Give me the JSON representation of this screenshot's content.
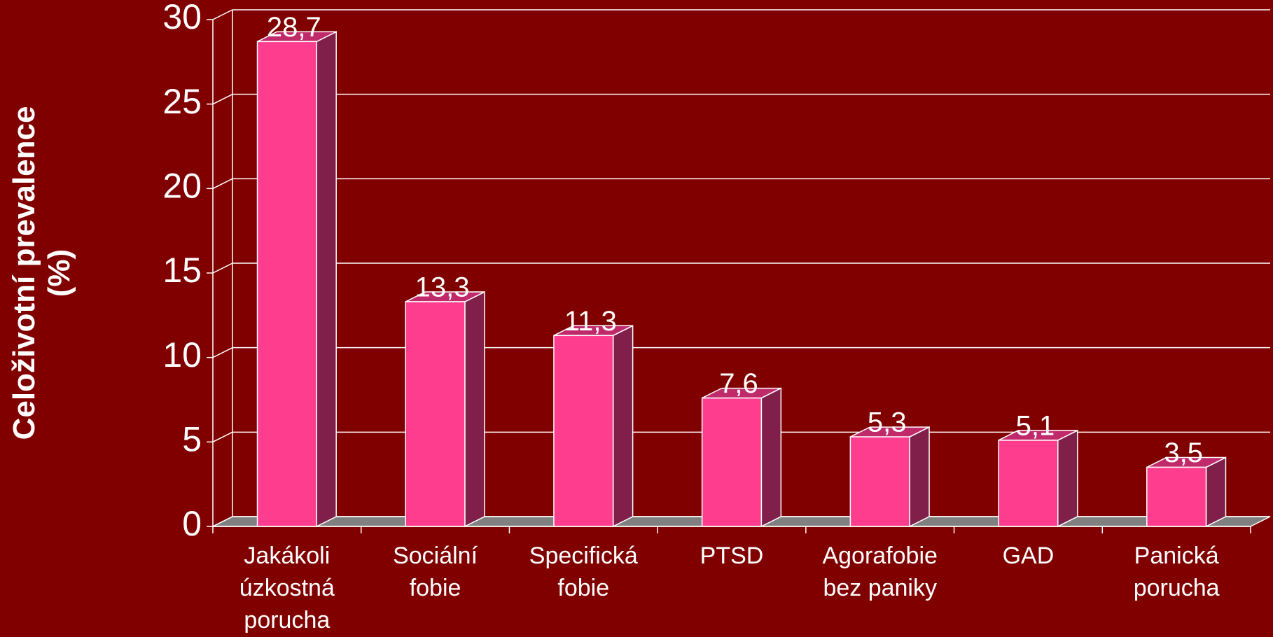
{
  "chart_data": {
    "type": "bar3d",
    "y_label": "Celoživotní prevalence\n(%)",
    "categories": [
      "Jakákoli\núzkostná\nporucha",
      "Sociální\nfobie",
      "Specifická\nfobie",
      "PTSD",
      "Agorafobie\nbez paniky",
      "GAD",
      "Panická\nporucha"
    ],
    "values": [
      28.7,
      13.3,
      11.3,
      7.6,
      5.3,
      5.1,
      3.5
    ],
    "value_labels": [
      "28,7",
      "13,3",
      "11,3",
      "7,6",
      "5,3",
      "5,1",
      "3,5"
    ],
    "color": "#ff3d8e",
    "ylim": [
      0,
      30
    ],
    "yticks": [
      0,
      5,
      10,
      15,
      20,
      25,
      30
    ],
    "grid": true
  }
}
